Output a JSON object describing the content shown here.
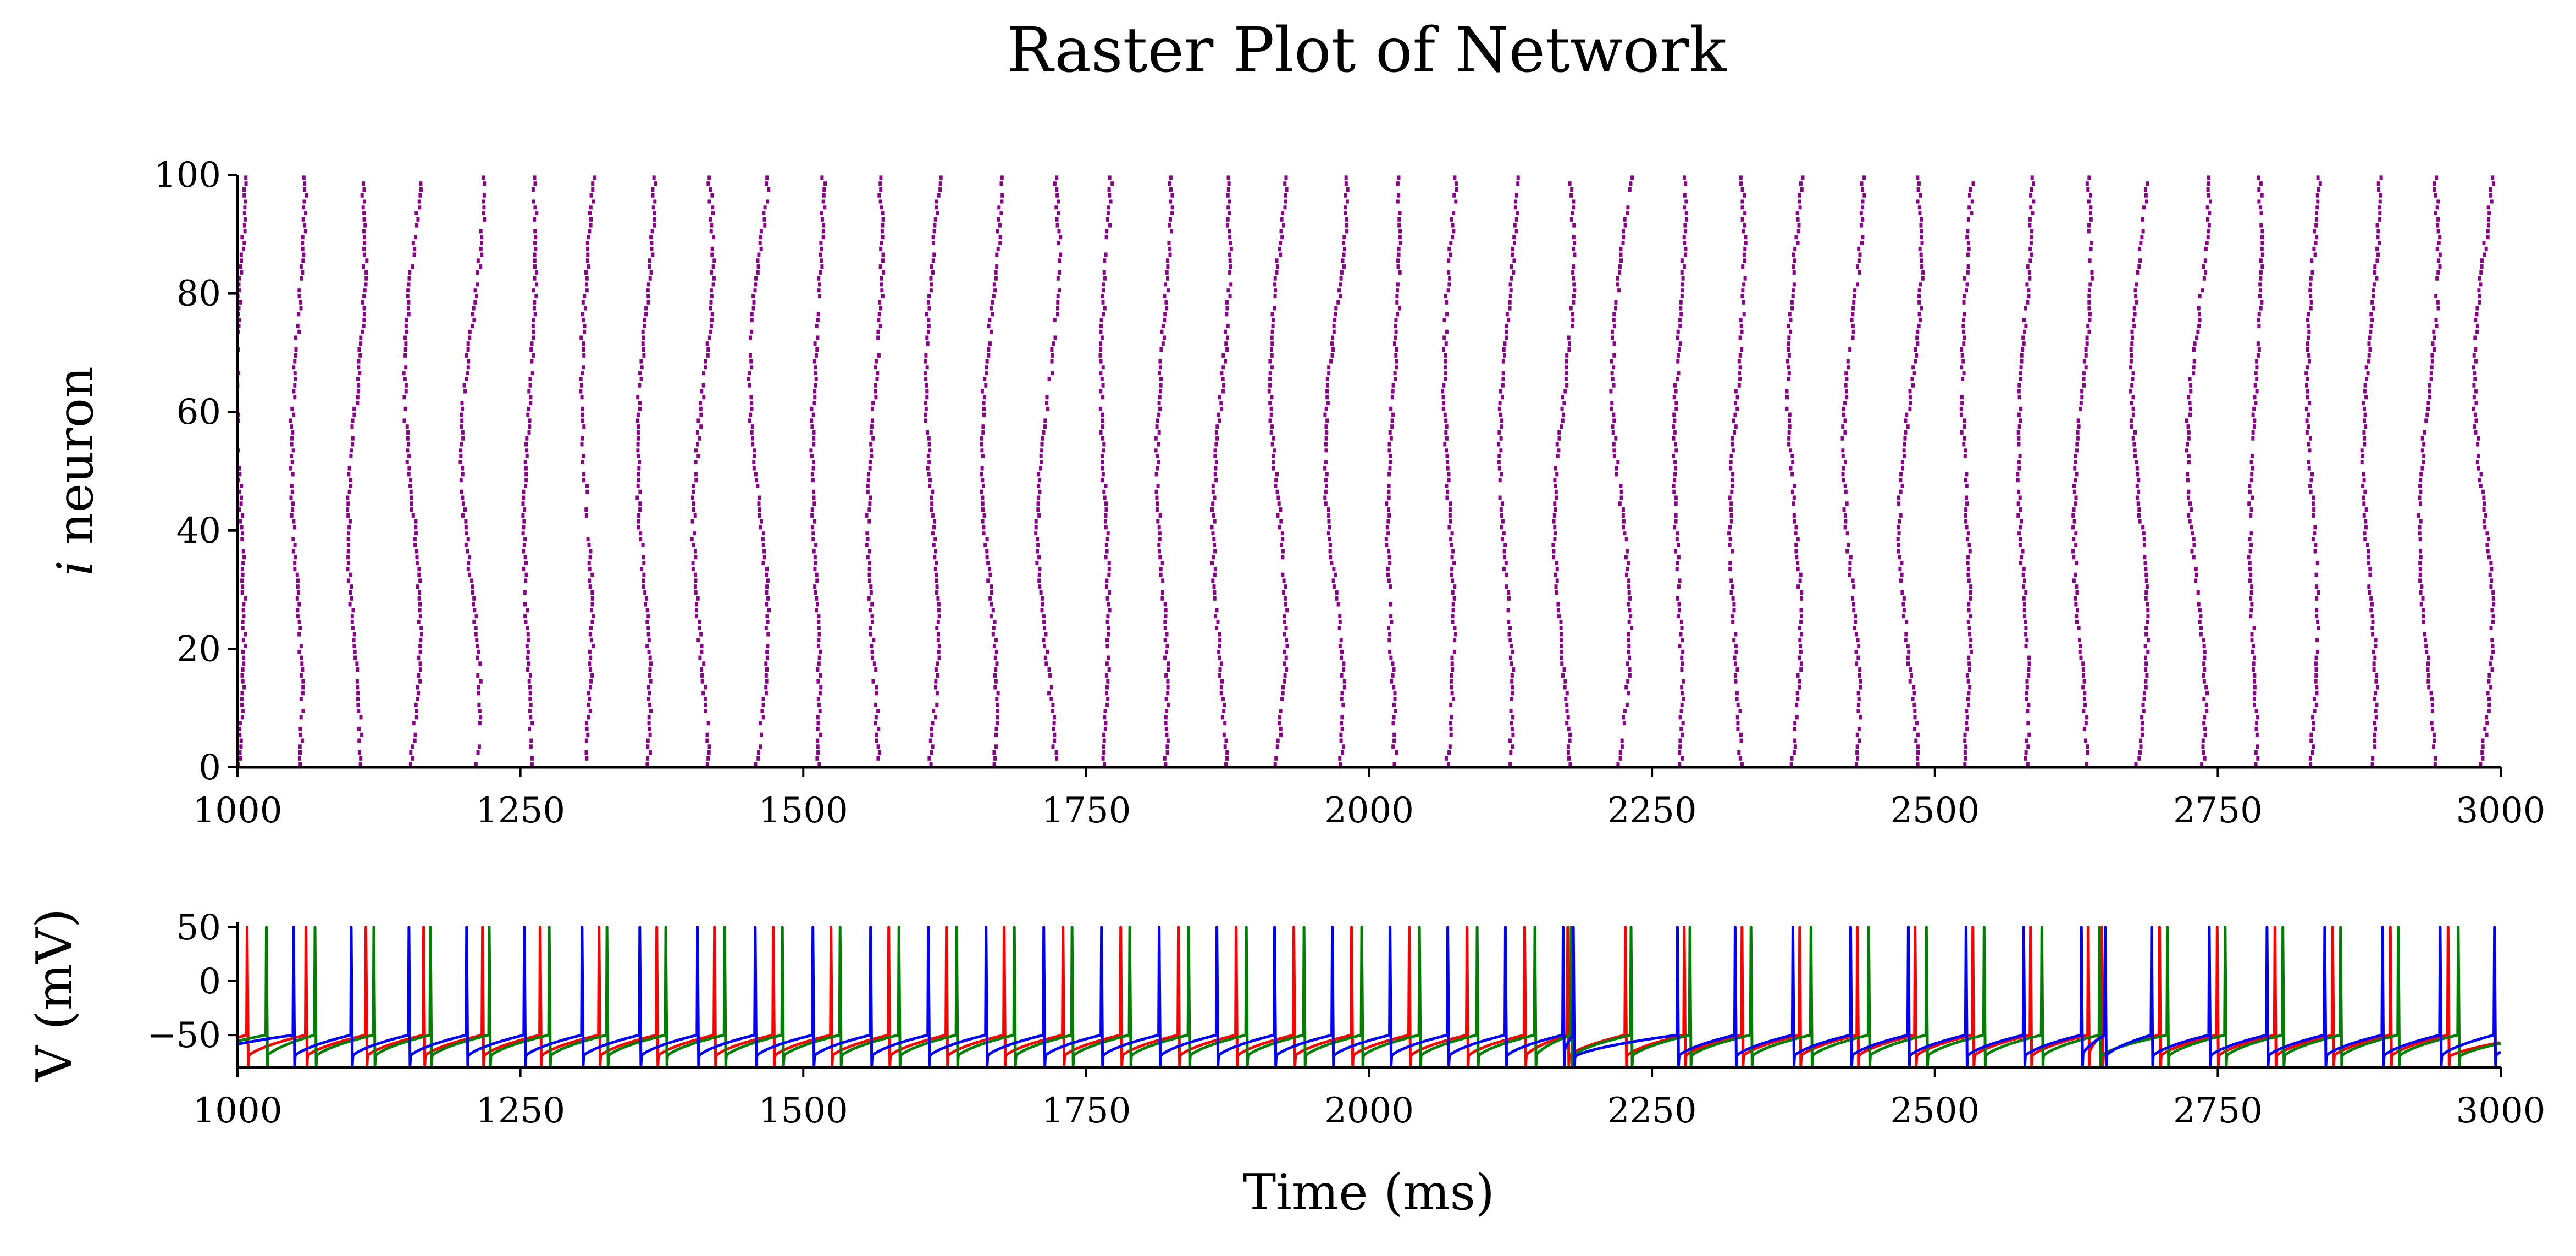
{
  "title": "Raster Plot of Network",
  "chart_data": [
    {
      "type": "scatter",
      "name": "raster",
      "xlabel": "",
      "ylabel": "i neuron",
      "ylabel_italic_symbol": "i",
      "ylabel_rest": " neuron",
      "xlim": [
        1000,
        3000
      ],
      "ylim": [
        0,
        100
      ],
      "xticks": [
        1000,
        1250,
        1500,
        1750,
        2000,
        2250,
        2500,
        2750,
        3000
      ],
      "xtick_labels": [
        "1000",
        "1250",
        "1500",
        "1750",
        "2000",
        "2250",
        "2500",
        "2750",
        "3000"
      ],
      "yticks": [
        0,
        20,
        40,
        60,
        80,
        100
      ],
      "ytick_labels": [
        "0",
        "20",
        "40",
        "60",
        "80",
        "100"
      ],
      "marker_color": "#8b008b",
      "n_neurons": 100,
      "burst_times_ms": [
        1003,
        1053,
        1105,
        1155,
        1207,
        1258,
        1309,
        1360,
        1411,
        1461,
        1512,
        1563,
        1614,
        1665,
        1716,
        1767,
        1818,
        1869,
        1920,
        1970,
        2021,
        2071,
        2122,
        2172,
        2223,
        2274,
        2325,
        2376,
        2427,
        2478,
        2528,
        2579,
        2630,
        2681,
        2732,
        2783,
        2834,
        2885,
        2936,
        2985
      ],
      "grid": false,
      "legend": "none"
    },
    {
      "type": "line",
      "name": "voltage",
      "xlabel": "Time (ms)",
      "ylabel": "V (mV)",
      "xlim": [
        1000,
        3000
      ],
      "ylim": [
        -80,
        55
      ],
      "xticks": [
        1000,
        1250,
        1500,
        1750,
        2000,
        2250,
        2500,
        2750,
        3000
      ],
      "xtick_labels": [
        "1000",
        "1250",
        "1500",
        "1750",
        "2000",
        "2250",
        "2500",
        "2750",
        "3000"
      ],
      "yticks": [
        -50,
        0,
        50
      ],
      "ytick_labels": [
        "−50",
        "0",
        "50"
      ],
      "rest_mV": -72,
      "threshold_mV": -50,
      "peak_mV": 50,
      "series": [
        {
          "color": "#ff0000",
          "spike_times_ms": [
            1008,
            1060,
            1113,
            1164,
            1216,
            1267,
            1319,
            1370,
            1421,
            1473,
            1524,
            1575,
            1626,
            1677,
            1729,
            1780,
            1831,
            1882,
            1933,
            1984,
            2035,
            2086,
            2137,
            2175,
            2226,
            2278,
            2329,
            2380,
            2431,
            2482,
            2533,
            2584,
            2635,
            2647,
            2698,
            2749,
            2800,
            2851,
            2902,
            2953
          ]
        },
        {
          "color": "#008000",
          "spike_times_ms": [
            1025,
            1068,
            1120,
            1170,
            1222,
            1275,
            1326,
            1378,
            1430,
            1481,
            1532,
            1584,
            1635,
            1686,
            1737,
            1788,
            1840,
            1891,
            1942,
            1993,
            2044,
            2095,
            2146,
            2178,
            2231,
            2283,
            2337,
            2390,
            2441,
            2492,
            2543,
            2594,
            2645,
            2705,
            2756,
            2807,
            2858,
            2909,
            2962
          ]
        },
        {
          "color": "#0000ff",
          "spike_times_ms": [
            1049,
            1100,
            1151,
            1202,
            1253,
            1304,
            1355,
            1406,
            1457,
            1508,
            1559,
            1610,
            1661,
            1712,
            1763,
            1814,
            1865,
            1916,
            1967,
            2018,
            2069,
            2120,
            2171,
            2180,
            2272,
            2323,
            2374,
            2425,
            2476,
            2527,
            2578,
            2629,
            2650,
            2691,
            2742,
            2793,
            2844,
            2895,
            2946,
            2994
          ]
        }
      ],
      "grid": false,
      "legend": "none"
    }
  ]
}
